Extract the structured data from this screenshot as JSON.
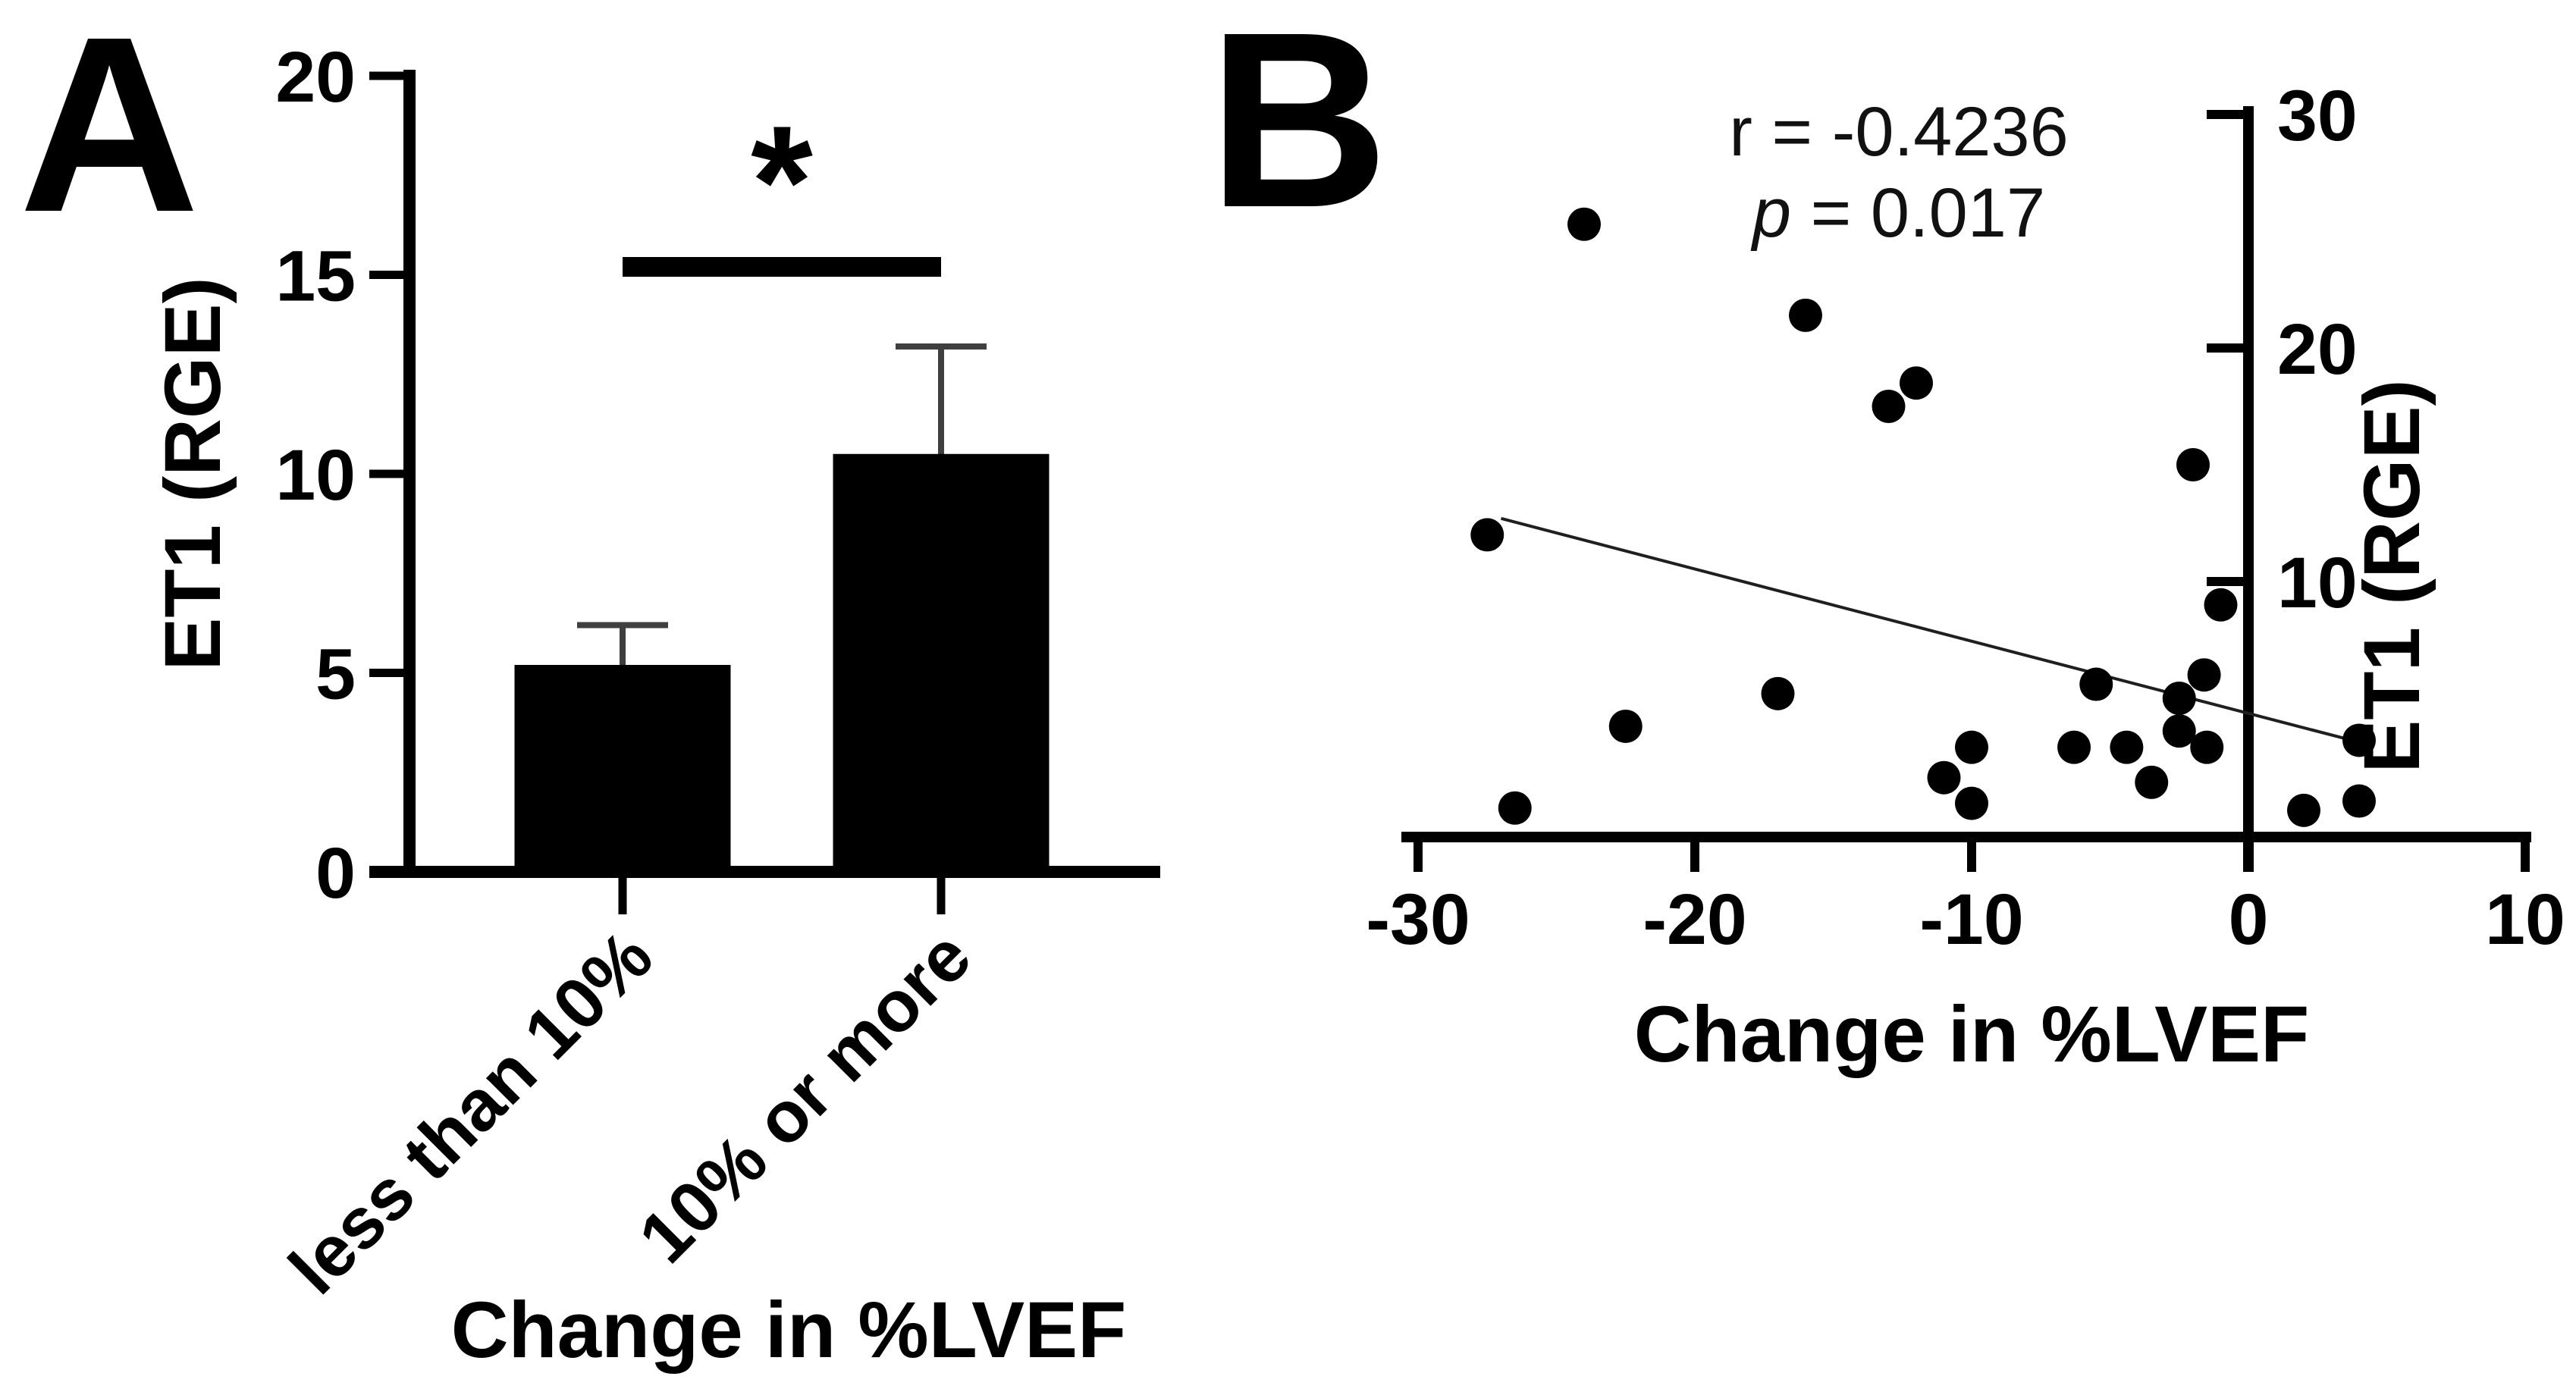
{
  "figure": {
    "background": "#ffffff",
    "description": "Two-panel GraphPad-style figure relating ET1 gene expression to change in left-ventricular ejection fraction"
  },
  "chart_data": [
    {
      "type": "bar",
      "panel_label": "A",
      "categories": [
        "less than 10%",
        "10% or more"
      ],
      "values": [
        5.2,
        10.5
      ],
      "error_plus": [
        1.0,
        2.7
      ],
      "yticks": [
        0,
        5,
        10,
        15,
        20
      ],
      "ylim": [
        0,
        20
      ],
      "xlabel": "Change in %LVEF",
      "ylabel": "ET1 (RGE)",
      "significance": {
        "star": "*",
        "from_category": "less than 10%",
        "to_category": "10% or more",
        "height": 15.2
      },
      "bar_color": "#000000",
      "error_color": "#3f3f3f",
      "axis_color": "#000000",
      "grid": false,
      "legend_position": "none"
    },
    {
      "type": "scatter",
      "panel_label": "B",
      "points": [
        [
          -27.5,
          12.0
        ],
        [
          -26.5,
          0.3
        ],
        [
          -24,
          25.3
        ],
        [
          -22.5,
          3.8
        ],
        [
          -17,
          5.2
        ],
        [
          -16,
          21.4
        ],
        [
          -13,
          17.5
        ],
        [
          -12,
          18.5
        ],
        [
          -11,
          1.6
        ],
        [
          -10,
          2.9
        ],
        [
          -10,
          0.5
        ],
        [
          -6.3,
          2.9
        ],
        [
          -5.5,
          5.6
        ],
        [
          -4.4,
          2.9
        ],
        [
          -3.5,
          1.4
        ],
        [
          -2.5,
          5.0
        ],
        [
          -2.5,
          3.6
        ],
        [
          -2,
          15.0
        ],
        [
          -1.6,
          6.0
        ],
        [
          -1.5,
          2.9
        ],
        [
          -1,
          9.0
        ],
        [
          2,
          0.2
        ],
        [
          4,
          3.2
        ],
        [
          4,
          0.6
        ]
      ],
      "regression_line": {
        "x1": -27,
        "y1": 12.7,
        "x2": 3.9,
        "y2": 3.15
      },
      "annotation": {
        "r": {
          "sym": "r",
          "rest": " = -0.4236",
          "italic": false
        },
        "p": {
          "sym": "p",
          "rest": " = 0.017",
          "italic": true
        }
      },
      "xticks": [
        -30,
        -20,
        -10,
        0,
        10
      ],
      "yticks": [
        10,
        20,
        30
      ],
      "xlim": [
        -32,
        10
      ],
      "ylim": [
        0,
        30
      ],
      "xlabel": "Change in %LVEF",
      "ylabel": "ET1 (RGE)",
      "point_color": "#000000",
      "line_color": "#1f1f1f",
      "axis_color": "#000000",
      "grid": false,
      "legend_position": "none"
    }
  ]
}
